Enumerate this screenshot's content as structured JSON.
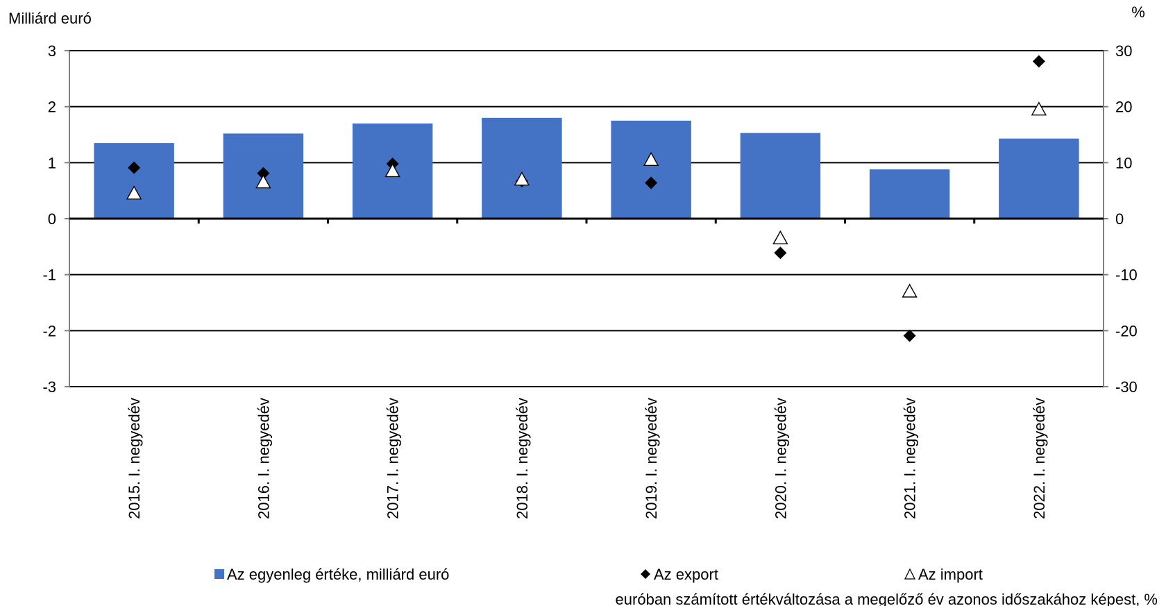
{
  "chart_data": {
    "type": "bar",
    "categories": [
      "2015. I. negyedév",
      "2016. I. negyedév",
      "2017. I. negyedév",
      "2018. I. negyedév",
      "2019. I. negyedév",
      "2020. I. negyedév",
      "2021. I. negyedév",
      "2022. I. negyedév"
    ],
    "series": [
      {
        "name": "Az egyenleg értéke, milliárd euró",
        "type": "bar",
        "axis": "left",
        "color": "#4472C4",
        "values": [
          1.35,
          1.52,
          1.7,
          1.8,
          1.75,
          1.53,
          0.88,
          1.43
        ]
      },
      {
        "name": "Az export",
        "type": "scatter",
        "marker": "diamond-filled",
        "axis": "right",
        "color": "#000000",
        "values": [
          9.1,
          8.1,
          9.8,
          6.7,
          6.4,
          -6.1,
          -20.9,
          28.1
        ]
      },
      {
        "name": "Az import",
        "type": "scatter",
        "marker": "triangle-open",
        "axis": "right",
        "color": "#000000",
        "values": [
          4.5,
          6.5,
          8.5,
          7.0,
          10.5,
          -3.5,
          -13.0,
          19.5
        ]
      }
    ],
    "ylabel": "Milliárd euró",
    "y2label": "%",
    "ylim": [
      -3,
      3
    ],
    "y2lim": [
      -30,
      30
    ],
    "yticks": [
      "3",
      "2",
      "1",
      "0",
      "-1",
      "-2",
      "-3"
    ],
    "y2ticks": [
      "30",
      "20",
      "10",
      "0",
      "-10",
      "-20",
      "-30"
    ],
    "grid": true,
    "legend_position": "bottom",
    "legend_note": "euróban számított értékváltozása a megelőző év azonos időszakához képest, %"
  }
}
